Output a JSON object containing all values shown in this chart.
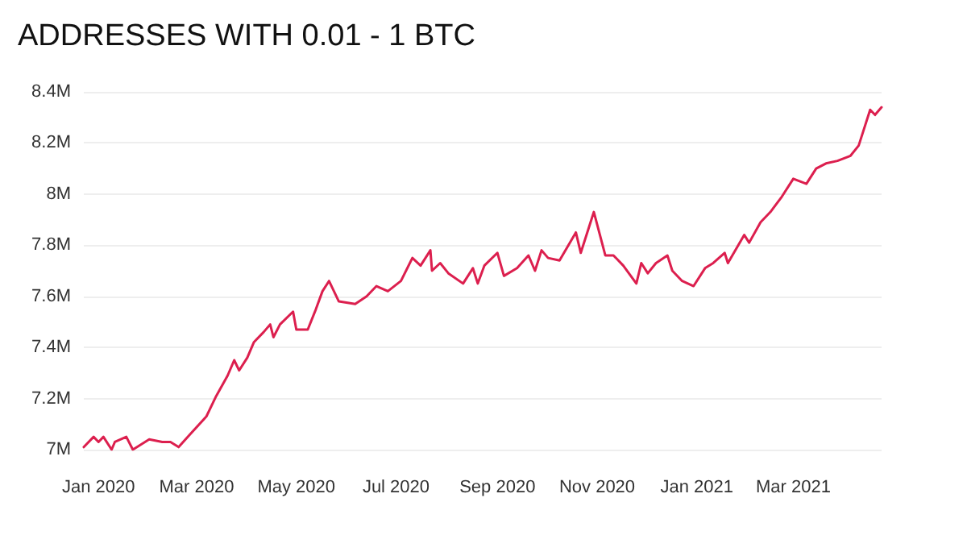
{
  "chart_data": {
    "type": "line",
    "title": "ADDRESSES WITH 0.01 - 1 BTC",
    "x": [
      "2019-12-23",
      "2019-12-29",
      "2020-01-01",
      "2020-01-04",
      "2020-01-09",
      "2020-01-11",
      "2020-01-18",
      "2020-01-22",
      "2020-02-01",
      "2020-02-09",
      "2020-02-14",
      "2020-02-19",
      "2020-02-26",
      "2020-03-07",
      "2020-03-13",
      "2020-03-20",
      "2020-03-24",
      "2020-03-27",
      "2020-04-01",
      "2020-04-05",
      "2020-04-11",
      "2020-04-15",
      "2020-04-17",
      "2020-04-21",
      "2020-04-29",
      "2020-05-01",
      "2020-05-08",
      "2020-05-13",
      "2020-05-17",
      "2020-05-21",
      "2020-05-24",
      "2020-05-27",
      "2020-06-06",
      "2020-06-13",
      "2020-06-19",
      "2020-06-26",
      "2020-07-04",
      "2020-07-11",
      "2020-07-16",
      "2020-07-22",
      "2020-07-23",
      "2020-07-28",
      "2020-08-02",
      "2020-08-11",
      "2020-08-17",
      "2020-08-20",
      "2020-08-24",
      "2020-09-01",
      "2020-09-05",
      "2020-09-13",
      "2020-09-20",
      "2020-09-24",
      "2020-09-28",
      "2020-10-02",
      "2020-10-09",
      "2020-10-19",
      "2020-10-22",
      "2020-10-30",
      "2020-11-06",
      "2020-11-11",
      "2020-11-17",
      "2020-11-25",
      "2020-11-28",
      "2020-12-02",
      "2020-12-07",
      "2020-12-14",
      "2020-12-17",
      "2020-12-23",
      "2020-12-30",
      "2021-01-06",
      "2021-01-11",
      "2021-01-18",
      "2021-01-20",
      "2021-01-30",
      "2021-02-02",
      "2021-02-09",
      "2021-02-15",
      "2021-02-22",
      "2021-03-01",
      "2021-03-09",
      "2021-03-15",
      "2021-03-21",
      "2021-03-28",
      "2021-04-05",
      "2021-04-10",
      "2021-04-17",
      "2021-04-20",
      "2021-04-24"
    ],
    "series": [
      {
        "color": "#dc1f4e",
        "values": [
          7.01,
          7.05,
          7.03,
          7.05,
          7.0,
          7.03,
          7.05,
          7.0,
          7.04,
          7.03,
          7.03,
          7.01,
          7.06,
          7.13,
          7.21,
          7.29,
          7.35,
          7.31,
          7.36,
          7.42,
          7.46,
          7.49,
          7.44,
          7.49,
          7.54,
          7.47,
          7.47,
          7.55,
          7.62,
          7.66,
          7.62,
          7.58,
          7.57,
          7.6,
          7.64,
          7.62,
          7.66,
          7.75,
          7.72,
          7.78,
          7.7,
          7.73,
          7.69,
          7.65,
          7.71,
          7.65,
          7.72,
          7.77,
          7.68,
          7.71,
          7.76,
          7.7,
          7.78,
          7.75,
          7.74,
          7.85,
          7.77,
          7.93,
          7.76,
          7.76,
          7.72,
          7.65,
          7.73,
          7.69,
          7.73,
          7.76,
          7.7,
          7.66,
          7.64,
          7.71,
          7.73,
          7.77,
          7.73,
          7.84,
          7.81,
          7.89,
          7.93,
          7.99,
          8.06,
          8.04,
          8.1,
          8.12,
          8.13,
          8.15,
          8.19,
          8.33,
          8.31,
          8.34
        ]
      }
    ],
    "xlim": [
      "2019-12-23",
      "2021-04-24"
    ],
    "xticks": [
      {
        "value": "2020-01",
        "label": "Jan 2020"
      },
      {
        "value": "2020-03",
        "label": "Mar 2020"
      },
      {
        "value": "2020-05",
        "label": "May 2020"
      },
      {
        "value": "2020-07",
        "label": "Jul 2020"
      },
      {
        "value": "2020-09",
        "label": "Sep 2020"
      },
      {
        "value": "2020-11",
        "label": "Nov 2020"
      },
      {
        "value": "2021-01",
        "label": "Jan 2021"
      },
      {
        "value": "2021-03",
        "label": "Mar 2021"
      }
    ],
    "ylim": [
      7,
      8.4
    ],
    "yticks": [
      {
        "value": 7,
        "label": "7M"
      },
      {
        "value": 7.2,
        "label": "7.2M"
      },
      {
        "value": 7.4,
        "label": "7.4M"
      },
      {
        "value": 7.6,
        "label": "7.6M"
      },
      {
        "value": 7.8,
        "label": "7.8M"
      },
      {
        "value": 8,
        "label": "8M"
      },
      {
        "value": 8.2,
        "label": "8.2M"
      },
      {
        "value": 8.4,
        "label": "8.4M"
      }
    ],
    "grid": "y",
    "marker": "none",
    "line_style": "solid"
  }
}
